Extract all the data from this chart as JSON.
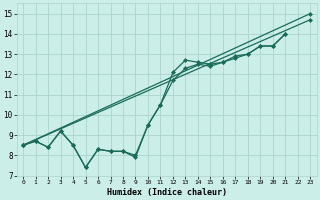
{
  "xlabel": "Humidex (Indice chaleur)",
  "background_color": "#cceee8",
  "grid_color": "#aad4ce",
  "line_color": "#1a6b5a",
  "xlim": [
    -0.5,
    23.5
  ],
  "ylim": [
    7,
    15.5
  ],
  "yticks": [
    7,
    8,
    9,
    10,
    11,
    12,
    13,
    14,
    15
  ],
  "xticks": [
    0,
    1,
    2,
    3,
    4,
    5,
    6,
    7,
    8,
    9,
    10,
    11,
    12,
    13,
    14,
    15,
    16,
    17,
    18,
    19,
    20,
    21,
    22,
    23
  ],
  "series1_x": [
    0,
    1,
    2,
    3,
    4,
    5,
    6,
    7,
    8,
    9,
    10,
    11,
    12,
    13,
    14,
    15,
    16,
    17,
    18,
    19,
    20,
    21
  ],
  "series1_y": [
    8.5,
    8.7,
    8.4,
    9.2,
    8.5,
    7.4,
    8.3,
    8.2,
    8.2,
    8.0,
    9.5,
    10.5,
    12.1,
    12.7,
    12.6,
    12.5,
    12.6,
    12.9,
    13.0,
    13.4,
    13.4,
    14.0
  ],
  "series2_x": [
    0,
    1,
    2,
    3,
    4,
    5,
    6,
    7,
    8,
    9,
    10,
    11,
    12,
    13,
    14,
    15,
    16,
    17,
    18,
    19,
    20,
    21
  ],
  "series2_y": [
    8.5,
    8.7,
    8.4,
    9.2,
    8.5,
    7.4,
    8.3,
    8.2,
    8.2,
    7.9,
    9.5,
    10.5,
    11.7,
    12.3,
    12.5,
    12.4,
    12.6,
    12.8,
    13.0,
    13.4,
    13.4,
    14.0
  ],
  "series3_x": [
    0,
    23
  ],
  "series3_y": [
    8.5,
    15.0
  ],
  "series4_x": [
    0,
    23
  ],
  "series4_y": [
    8.5,
    14.7
  ],
  "lw": 0.9,
  "ms": 2.5
}
